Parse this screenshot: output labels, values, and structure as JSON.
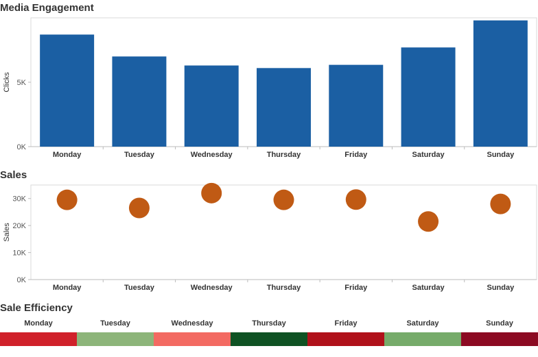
{
  "chart_data": [
    {
      "type": "bar",
      "title": "Media Engagement",
      "ylabel": "Clicks",
      "categories": [
        "Monday",
        "Tuesday",
        "Wednesday",
        "Thursday",
        "Friday",
        "Saturday",
        "Sunday"
      ],
      "values": [
        8700,
        7000,
        6300,
        6100,
        6350,
        7700,
        9800
      ],
      "yticks": [
        "0K",
        "5K"
      ],
      "ylim": [
        0,
        10000
      ],
      "color": "#1b5fa3"
    },
    {
      "type": "scatter",
      "title": "Sales",
      "ylabel": "Sales",
      "categories": [
        "Monday",
        "Tuesday",
        "Wednesday",
        "Thursday",
        "Friday",
        "Saturday",
        "Sunday"
      ],
      "values": [
        29500,
        26500,
        32000,
        29500,
        29600,
        21500,
        28000
      ],
      "yticks": [
        "0K",
        "10K",
        "20K",
        "30K"
      ],
      "ylim": [
        0,
        35000
      ],
      "color": "#c05a14"
    },
    {
      "type": "heatmap",
      "title": "Sale Efficiency",
      "categories": [
        "Monday",
        "Tuesday",
        "Wednesday",
        "Thursday",
        "Friday",
        "Saturday",
        "Sunday"
      ],
      "colors": [
        "#d0212a",
        "#8db57a",
        "#f36a62",
        "#0f5223",
        "#b0111a",
        "#76ab6a",
        "#8c0a22"
      ]
    }
  ]
}
